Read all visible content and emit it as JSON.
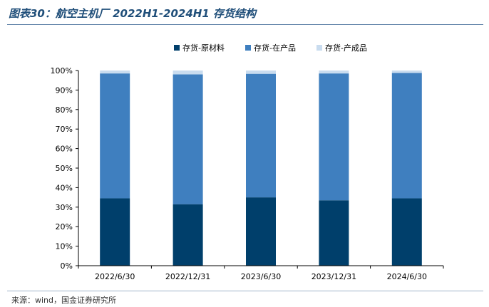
{
  "title": "图表30：航空主机厂 2022H1-2024H1 存货结构",
  "source": "来源：wind，国金证券研究所",
  "colors": {
    "title": "#1f4e79",
    "series": [
      "#003f6b",
      "#3f7fbf",
      "#c9dcef"
    ]
  },
  "chart_data": {
    "type": "bar",
    "stacked": true,
    "normalized": true,
    "categories": [
      "2022/6/30",
      "2022/12/31",
      "2023/6/30",
      "2023/12/31",
      "2024/6/30"
    ],
    "series": [
      {
        "name": "存货-原材料",
        "values": [
          34.5,
          31.5,
          35.0,
          33.5,
          34.5
        ]
      },
      {
        "name": "存货-在产品",
        "values": [
          64.0,
          66.5,
          63.3,
          65.0,
          64.3
        ]
      },
      {
        "name": "存货-产成品",
        "values": [
          1.5,
          2.0,
          1.7,
          1.5,
          1.2
        ]
      }
    ],
    "ylim": [
      0,
      100
    ],
    "y_ticks": [
      "0%",
      "10%",
      "20%",
      "30%",
      "40%",
      "50%",
      "60%",
      "70%",
      "80%",
      "90%",
      "100%"
    ],
    "legend_position": "top-center",
    "grid": false
  }
}
